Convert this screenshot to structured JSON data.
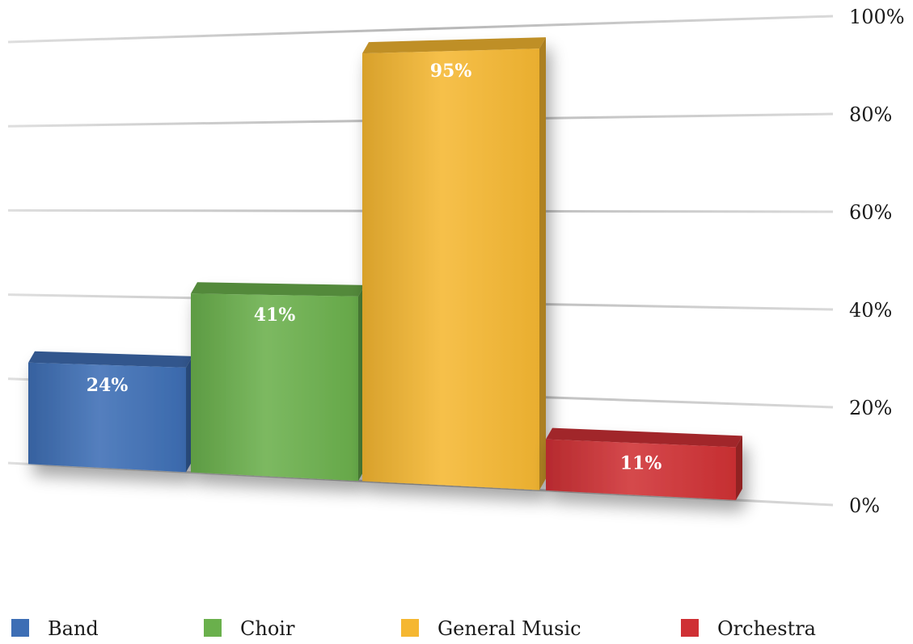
{
  "chart_data": {
    "type": "bar",
    "title": "",
    "xlabel": "",
    "ylabel": "",
    "categories": [
      "Band",
      "Choir",
      "General Music",
      "Orchestra"
    ],
    "values": [
      24,
      41,
      95,
      11
    ],
    "value_labels": [
      "24%",
      "41%",
      "95%",
      "11%"
    ],
    "colors": [
      "#3d6eb5",
      "#6ab04c",
      "#f5b731",
      "#cf3034"
    ],
    "ylim": [
      0,
      100
    ],
    "yticks": [
      0,
      20,
      40,
      60,
      80,
      100
    ],
    "ytick_labels": [
      "0%",
      "20%",
      "40%",
      "60%",
      "80%",
      "100%"
    ],
    "y_axis_side": "right",
    "grid": true,
    "style": "3d-perspective",
    "legend": {
      "position": "bottom",
      "entries": [
        "Band",
        "Choir",
        "General Music",
        "Orchestra"
      ]
    }
  }
}
